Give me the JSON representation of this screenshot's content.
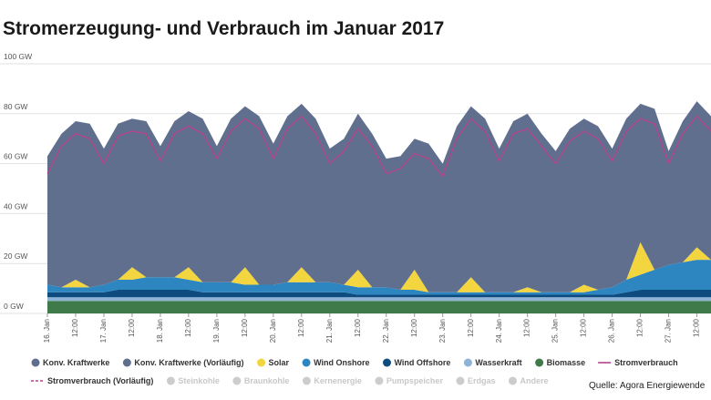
{
  "chart_data": {
    "type": "stacked_area",
    "title": "Stromerzeugung- und Verbrauch im Januar 2017",
    "source": "Quelle: Agora Energiewende",
    "categories": [
      "16. Jan",
      null,
      "12:00",
      null,
      "17. Jan",
      null,
      "12:00",
      null,
      "18. Jan",
      null,
      "12:00",
      null,
      "19. Jan",
      null,
      "12:00",
      null,
      "20. Jan",
      null,
      "12:00",
      null,
      "21. Jan",
      null,
      "12:00",
      null,
      "22. Jan",
      null,
      "12:00",
      null,
      "23. Jan",
      null,
      "12:00",
      null,
      "24. Jan",
      null,
      "12:00",
      null,
      "25. Jan",
      null,
      "12:00",
      null,
      "26. Jan",
      null,
      "12:00",
      null,
      "27. Jan",
      null,
      "12:00",
      null
    ],
    "series": [
      {
        "name": "Konv. Kraftwerke",
        "color": "#616f8f",
        "values": [
          51.5,
          61.5,
          63.5,
          65.5,
          54.5,
          62.5,
          59.5,
          62.5,
          52.5,
          62.5,
          62.5,
          65.5,
          54.5,
          65.5,
          64.5,
          67.5,
          56.5,
          66.5,
          65.5,
          65.5,
          53.5,
          58.5,
          62.5,
          61.5,
          51.5,
          53.5,
          52.5,
          59.5,
          51.5,
          66.5,
          68.5,
          69.5,
          57.5,
          68.5,
          69.5,
          63.5,
          56.5,
          65.5,
          66.5,
          65.5,
          55.5,
          64.5,
          55.5,
          64.5,
          45.5,
          56.5,
          58.5,
          57.5
        ]
      },
      {
        "name": "Solar",
        "color": "#f3d53f",
        "values": [
          0,
          0,
          3,
          0,
          0,
          0,
          5,
          0,
          0,
          0,
          5,
          0,
          0,
          0,
          7,
          0,
          0,
          0,
          6,
          0,
          0,
          0,
          7,
          0,
          0,
          0,
          8,
          0,
          0,
          0,
          6,
          0,
          0,
          0,
          2,
          0,
          0,
          0,
          3,
          0,
          0,
          0,
          13,
          0,
          0,
          0,
          5,
          0
        ]
      },
      {
        "name": "Wind Onshore",
        "color": "#2e86c1",
        "values": [
          3,
          2,
          2,
          2,
          3,
          4,
          4,
          5,
          5,
          5,
          4,
          4,
          4,
          4,
          3,
          3,
          3,
          4,
          4,
          4,
          4,
          3,
          3,
          3,
          3,
          2,
          2,
          1,
          1,
          1,
          1,
          1,
          1,
          1,
          1,
          1,
          1,
          1,
          1,
          2,
          3,
          5,
          6,
          8,
          10,
          11,
          12,
          12
        ]
      },
      {
        "name": "Wind Offshore",
        "color": "#0e4c80",
        "values": [
          2,
          2,
          2,
          2,
          2,
          3,
          3,
          3,
          3,
          3,
          3,
          2,
          2,
          2,
          2,
          2,
          2,
          2,
          2,
          2,
          2,
          2,
          1,
          1,
          1,
          1,
          1,
          1,
          1,
          1,
          1,
          1,
          1,
          1,
          1,
          1,
          1,
          1,
          1,
          1,
          1,
          2,
          3,
          3,
          3,
          3,
          3,
          3
        ]
      },
      {
        "name": "Wasserkraft",
        "color": "#8db4d6",
        "values": [
          1.5,
          1.5,
          1.5,
          1.5,
          1.5,
          1.5,
          1.5,
          1.5,
          1.5,
          1.5,
          1.5,
          1.5,
          1.5,
          1.5,
          1.5,
          1.5,
          1.5,
          1.5,
          1.5,
          1.5,
          1.5,
          1.5,
          1.5,
          1.5,
          1.5,
          1.5,
          1.5,
          1.5,
          1.5,
          1.5,
          1.5,
          1.5,
          1.5,
          1.5,
          1.5,
          1.5,
          1.5,
          1.5,
          1.5,
          1.5,
          1.5,
          1.5,
          1.5,
          1.5,
          1.5,
          1.5,
          1.5,
          1.5
        ]
      },
      {
        "name": "Biomasse",
        "color": "#3f7a4a",
        "values": [
          5,
          5,
          5,
          5,
          5,
          5,
          5,
          5,
          5,
          5,
          5,
          5,
          5,
          5,
          5,
          5,
          5,
          5,
          5,
          5,
          5,
          5,
          5,
          5,
          5,
          5,
          5,
          5,
          5,
          5,
          5,
          5,
          5,
          5,
          5,
          5,
          5,
          5,
          5,
          5,
          5,
          5,
          5,
          5,
          5,
          5,
          5,
          5
        ]
      },
      {
        "name": "Stromverbrauch",
        "color": "#b5428a",
        "kind": "line",
        "values": [
          56,
          67,
          72,
          70,
          60,
          71,
          73,
          72,
          61,
          72,
          75,
          72,
          62,
          73,
          78,
          74,
          62,
          74,
          79,
          72,
          60,
          65,
          74,
          67,
          56,
          58,
          64,
          62,
          55,
          70,
          78,
          73,
          61,
          72,
          74,
          67,
          60,
          69,
          73,
          70,
          61,
          73,
          78,
          76,
          60,
          72,
          79,
          73
        ]
      }
    ],
    "legend_extra": [
      {
        "name": "Konv. Kraftwerke (Vorläufig)",
        "color": "#616f8f",
        "style": "dot"
      },
      {
        "name": "Stromverbrauch (Vorläufig)",
        "color": "#b5428a",
        "style": "dash"
      },
      {
        "name": "Steinkohle",
        "color": "#cccccc",
        "style": "dot"
      },
      {
        "name": "Braunkohle",
        "color": "#cccccc",
        "style": "dot"
      },
      {
        "name": "Kernenergie",
        "color": "#cccccc",
        "style": "dot"
      },
      {
        "name": "Pumpspeicher",
        "color": "#cccccc",
        "style": "dot"
      },
      {
        "name": "Erdgas",
        "color": "#cccccc",
        "style": "dot"
      },
      {
        "name": "Andere",
        "color": "#cccccc",
        "style": "dot"
      }
    ],
    "ylim": [
      0,
      100
    ],
    "yticks": [
      {
        "value": 0,
        "label": "0 GW"
      },
      {
        "value": 20,
        "label": "20 GW"
      },
      {
        "value": 40,
        "label": "40 GW"
      },
      {
        "value": 60,
        "label": "60 GW"
      },
      {
        "value": 80,
        "label": "80 GW"
      },
      {
        "value": 100,
        "label": "100 GW"
      }
    ],
    "grid": true
  }
}
